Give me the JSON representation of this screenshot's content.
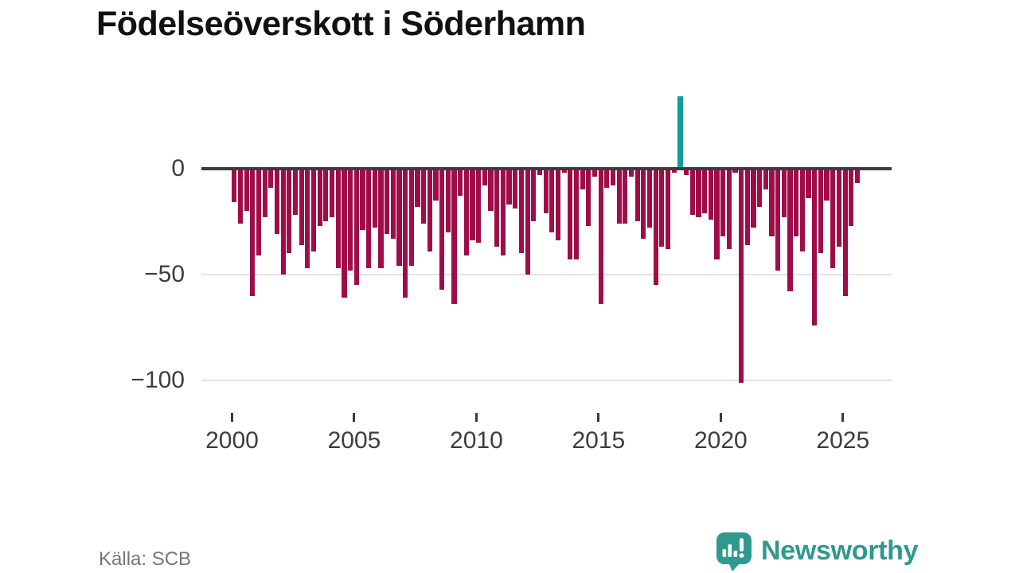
{
  "title": "Födelseöverskott i Söderhamn",
  "source": "Källa: SCB",
  "branding": {
    "logo_text": "Newsworthy",
    "logo_icon": "speech-bubble-with-bar-chart-and-exclamation"
  },
  "colors": {
    "bar_negative": "#9e0d48",
    "bar_highlight": "#0d9e9a",
    "axis_line": "#3b3b3b",
    "gridline": "#e4e4e4",
    "axis_text": "#3d3d3d",
    "muted_text": "#757575",
    "logo_teal": "#2f998f",
    "background": "#ffffff"
  },
  "chart_data": {
    "type": "bar",
    "title": "Födelseöverskott i Söderhamn",
    "x_start": "2000 Q1",
    "frequency": "quarterly",
    "x_tick_labels": [
      "2000",
      "2005",
      "2010",
      "2015",
      "2020",
      "2025"
    ],
    "y_ticks": [
      {
        "value": 0,
        "label": "0"
      },
      {
        "value": -50,
        "label": "−50"
      },
      {
        "value": -100,
        "label": "−100"
      }
    ],
    "ylim": [
      -110,
      40
    ],
    "grid": "horizontal",
    "legend": "none",
    "highlight_index": 73,
    "highlight_quarter": "2018 Q2",
    "highlight_value": 34,
    "values": [
      -16,
      -26,
      -20,
      -60,
      -41,
      -23,
      -9,
      -31,
      -50,
      -40,
      -22,
      -36,
      -47,
      -39,
      -27,
      -25,
      -23,
      -47,
      -61,
      -48,
      -55,
      -29,
      -47,
      -28,
      -47,
      -31,
      -33,
      -46,
      -61,
      -46,
      -18,
      -26,
      -39,
      -15,
      -57,
      -30,
      -64,
      -13,
      -41,
      -34,
      -35,
      -8,
      -20,
      -37,
      -41,
      -17,
      -19,
      -40,
      -50,
      -25,
      -3,
      -21,
      -30,
      -34,
      -2,
      -43,
      -43,
      -10,
      -27,
      -4,
      -64,
      -9,
      -8,
      -26,
      -26,
      -4,
      -25,
      -33,
      -28,
      -55,
      -37,
      -38,
      -2,
      34,
      -3,
      -22,
      -23,
      -21,
      -24,
      -43,
      -32,
      -38,
      -2,
      -101,
      -36,
      -28,
      -18,
      -10,
      -32,
      -48,
      -23,
      -58,
      -32,
      -39,
      -14,
      -74,
      -40,
      -15,
      -47,
      -37,
      -60,
      -27,
      -7
    ]
  }
}
